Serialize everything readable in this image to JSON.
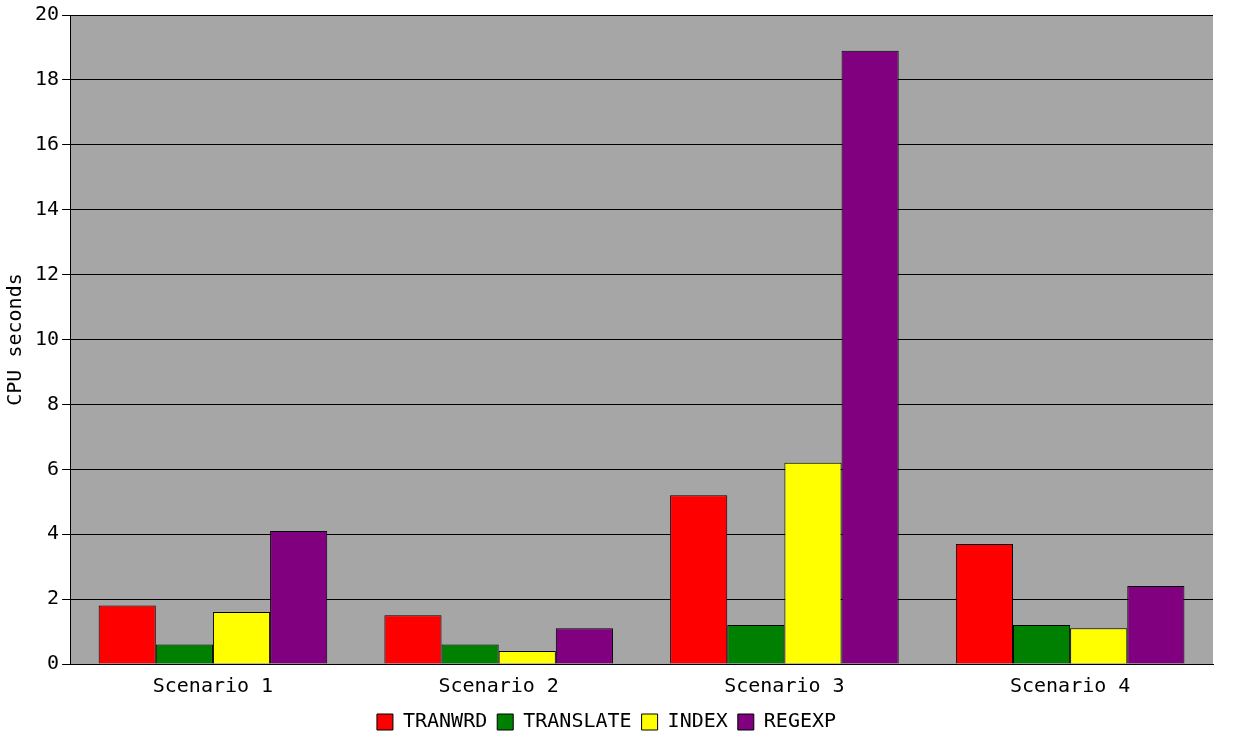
{
  "chart_data": {
    "type": "bar",
    "ylabel": "CPU seconds",
    "categories": [
      "Scenario 1",
      "Scenario 2",
      "Scenario 3",
      "Scenario 4"
    ],
    "series": [
      {
        "name": "TRANWRD",
        "color": "#ff0000",
        "values": [
          1.8,
          1.5,
          5.2,
          3.7
        ]
      },
      {
        "name": "TRANSLATE",
        "color": "#008000",
        "values": [
          0.6,
          0.6,
          1.2,
          1.2
        ]
      },
      {
        "name": "INDEX",
        "color": "#ffff00",
        "values": [
          1.6,
          0.4,
          6.2,
          1.1
        ]
      },
      {
        "name": "REGEXP",
        "color": "#800080",
        "values": [
          4.1,
          1.1,
          18.9,
          2.4
        ]
      }
    ],
    "ylim": [
      0,
      20
    ],
    "yticks": [
      0,
      2,
      4,
      6,
      8,
      10,
      12,
      14,
      16,
      18,
      20
    ],
    "grid": "y",
    "legend": "bottom"
  }
}
